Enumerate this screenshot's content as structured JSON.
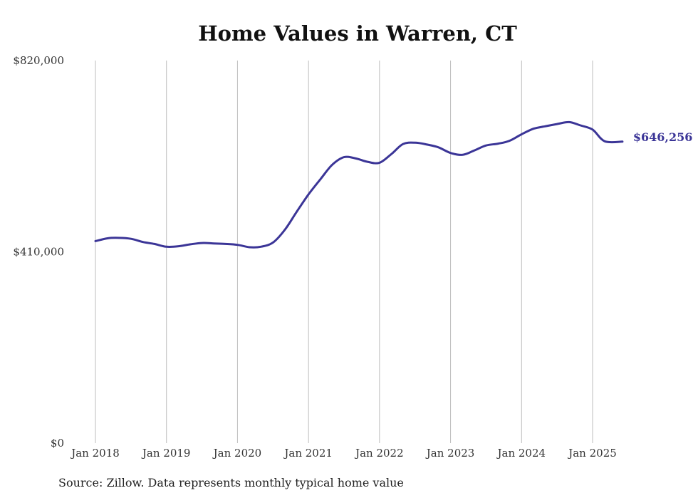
{
  "chart_data": {
    "type": "line",
    "title": "Home Values in Warren, CT",
    "xlabel": "",
    "ylabel": "",
    "ylim": [
      0,
      820000
    ],
    "y_ticks": [
      "$0",
      "$410,000",
      "$820,000"
    ],
    "y_tick_values": [
      0,
      410000,
      820000
    ],
    "x_ticks": [
      "Jan 2018",
      "Jan 2019",
      "Jan 2020",
      "Jan 2021",
      "Jan 2022",
      "Jan 2023",
      "Jan 2024",
      "Jan 2025"
    ],
    "x_tick_values": [
      2018,
      2019,
      2020,
      2021,
      2022,
      2023,
      2024,
      2025
    ],
    "xlim": [
      2018,
      2025.42
    ],
    "grid": "vertical",
    "line_color": "#3b3597",
    "end_label": "$646,256",
    "series": [
      {
        "x": [
          2018.0,
          2018.17,
          2018.33,
          2018.5,
          2018.67,
          2018.83,
          2019.0,
          2019.17,
          2019.33,
          2019.5,
          2019.67,
          2019.83,
          2020.0,
          2020.17,
          2020.33,
          2020.5,
          2020.67,
          2020.83,
          2021.0,
          2021.17,
          2021.33,
          2021.5,
          2021.67,
          2021.83,
          2022.0,
          2022.17,
          2022.33,
          2022.5,
          2022.67,
          2022.83,
          2023.0,
          2023.17,
          2023.33,
          2023.5,
          2023.67,
          2023.83,
          2024.0,
          2024.17,
          2024.33,
          2024.5,
          2024.67,
          2024.83,
          2025.0,
          2025.17,
          2025.42
        ],
        "values": [
          433000,
          439000,
          440000,
          438000,
          431000,
          427000,
          421000,
          422000,
          426000,
          429000,
          428000,
          427000,
          425000,
          420000,
          421000,
          430000,
          458000,
          495000,
          533000,
          566000,
          596000,
          613000,
          610000,
          603000,
          601000,
          620000,
          641000,
          644000,
          640000,
          634000,
          622000,
          618000,
          627000,
          638000,
          642000,
          648000,
          662000,
          674000,
          679000,
          684000,
          688000,
          681000,
          672000,
          647000,
          646256
        ]
      }
    ]
  },
  "source_note": "Source: Zillow. Data represents monthly typical home value"
}
